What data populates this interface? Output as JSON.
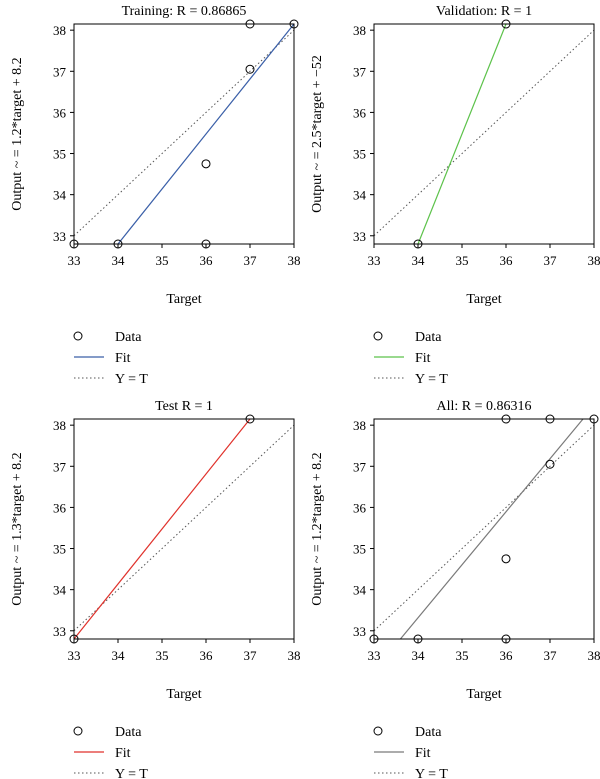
{
  "chart_data": [
    {
      "type": "scatter",
      "title": "Training: R = 0.86865",
      "xlabel": "Target",
      "ylabel": "Output ~ = 1.2*target + 8.2",
      "xlim": [
        33,
        38
      ],
      "ylim": [
        32.8,
        38.15
      ],
      "x_ticks": [
        33,
        34,
        35,
        36,
        37,
        38
      ],
      "y_ticks": [
        33,
        34,
        35,
        36,
        37,
        38
      ],
      "points": [
        {
          "x": 33,
          "y": 32.8
        },
        {
          "x": 34,
          "y": 32.8
        },
        {
          "x": 36,
          "y": 32.8
        },
        {
          "x": 36,
          "y": 34.75
        },
        {
          "x": 37,
          "y": 37.05
        },
        {
          "x": 37,
          "y": 38.15
        },
        {
          "x": 38,
          "y": 38.15
        }
      ],
      "fit_line": {
        "x": [
          34,
          38
        ],
        "y": [
          32.8,
          38.15
        ],
        "color": "#3a5fa8"
      },
      "identity_line": true,
      "legend": [
        "Data",
        "Fit",
        "Y = T"
      ]
    },
    {
      "type": "scatter",
      "title": "Validation: R = 1",
      "xlabel": "Target",
      "ylabel": "Output ~ = 2.5*target + −52",
      "xlim": [
        33,
        38
      ],
      "ylim": [
        32.8,
        38.15
      ],
      "x_ticks": [
        33,
        34,
        35,
        36,
        37,
        38
      ],
      "y_ticks": [
        33,
        34,
        35,
        36,
        37,
        38
      ],
      "points": [
        {
          "x": 34,
          "y": 32.8
        },
        {
          "x": 36,
          "y": 38.15
        }
      ],
      "fit_line": {
        "x": [
          34,
          36
        ],
        "y": [
          32.8,
          38.15
        ],
        "color": "#5cc24a"
      },
      "identity_line": true,
      "legend": [
        "Data",
        "Fit",
        "Y = T"
      ]
    },
    {
      "type": "scatter",
      "title": "Test R = 1",
      "xlabel": "Target",
      "ylabel": "Output ~ = 1.3*target + 8.2",
      "xlim": [
        33,
        38
      ],
      "ylim": [
        32.8,
        38.15
      ],
      "x_ticks": [
        33,
        34,
        35,
        36,
        37,
        38
      ],
      "y_ticks": [
        33,
        34,
        35,
        36,
        37,
        38
      ],
      "points": [
        {
          "x": 33,
          "y": 32.8
        },
        {
          "x": 37,
          "y": 38.15
        }
      ],
      "fit_line": {
        "x": [
          33,
          37
        ],
        "y": [
          32.8,
          38.15
        ],
        "color": "#e0322c"
      },
      "identity_line": true,
      "legend": [
        "Data",
        "Fit",
        "Y = T"
      ]
    },
    {
      "type": "scatter",
      "title": "All: R = 0.86316",
      "xlabel": "Target",
      "ylabel": "Output ~ = 1.2*target + 8.2",
      "xlim": [
        33,
        38
      ],
      "ylim": [
        32.8,
        38.15
      ],
      "x_ticks": [
        33,
        34,
        35,
        36,
        37,
        38
      ],
      "y_ticks": [
        33,
        34,
        35,
        36,
        37,
        38
      ],
      "points": [
        {
          "x": 33,
          "y": 32.8
        },
        {
          "x": 34,
          "y": 32.8
        },
        {
          "x": 36,
          "y": 32.8
        },
        {
          "x": 36,
          "y": 34.75
        },
        {
          "x": 37,
          "y": 37.05
        },
        {
          "x": 36,
          "y": 38.15
        },
        {
          "x": 37,
          "y": 38.15
        },
        {
          "x": 38,
          "y": 38.15
        }
      ],
      "fit_line": {
        "x": [
          33.6,
          37.75
        ],
        "y": [
          32.8,
          38.15
        ],
        "color": "#7a7a7a"
      },
      "identity_line": true,
      "legend": [
        "Data",
        "Fit",
        "Y = T"
      ]
    }
  ]
}
